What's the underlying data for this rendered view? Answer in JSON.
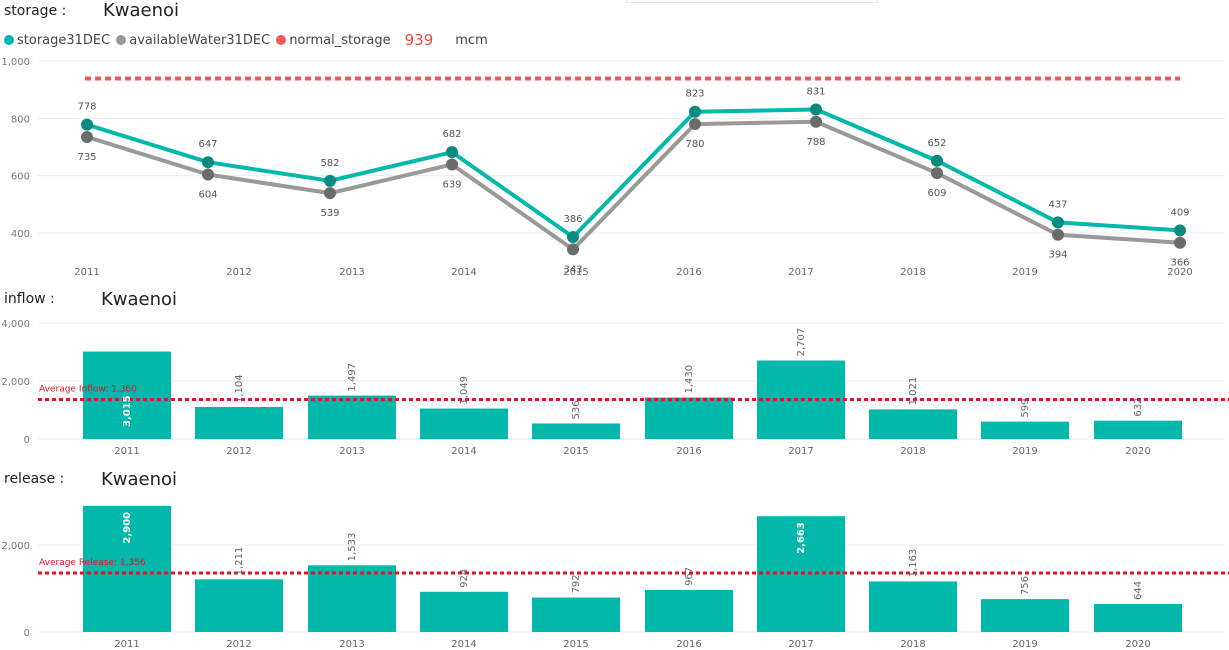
{
  "normal_storage_value": "939",
  "unit": "mcm",
  "colors": {
    "teal": "#01b8aa",
    "gray": "#999999",
    "dot_gray": "#6b6b6b",
    "red": "#e74c3c",
    "avg_red": "#e81123"
  },
  "storage": {
    "label": "storage :",
    "title": "Kwaenoi",
    "legend": [
      "storage31DEC",
      "availableWater31DEC",
      "normal_storage"
    ]
  },
  "inflow": {
    "label": "inflow :",
    "title": "Kwaenoi"
  },
  "release": {
    "label": "release :",
    "title": "Kwaenoi"
  },
  "chart_data": [
    {
      "type": "line",
      "title": "",
      "categories": [
        "2011",
        "2012",
        "2013",
        "2014",
        "2015",
        "2016",
        "2017",
        "2018",
        "2019",
        "2020"
      ],
      "series": [
        {
          "name": "storage31DEC",
          "values": [
            778,
            647,
            582,
            682,
            386,
            823,
            831,
            652,
            437,
            409
          ]
        },
        {
          "name": "availableWater31DEC",
          "values": [
            735,
            604,
            539,
            639,
            343,
            780,
            788,
            609,
            394,
            366
          ]
        },
        {
          "name": "normal_storage",
          "values": [
            939,
            939,
            939,
            939,
            939,
            939,
            939,
            939,
            939,
            939
          ]
        }
      ],
      "data_labels_storage": [
        "778",
        "647",
        "582",
        "682",
        "386",
        "823",
        "831",
        "652",
        "437",
        "409"
      ],
      "data_labels_available": [
        "735",
        "604",
        "539",
        "639",
        "343",
        "780",
        "788",
        "609",
        "394",
        "366"
      ],
      "yticks": [
        "400",
        "600",
        "800",
        "1,000"
      ],
      "ylim": [
        350,
        1000
      ],
      "grid": true
    },
    {
      "type": "bar",
      "title": "",
      "categories": [
        "2011",
        "2012",
        "2013",
        "2014",
        "2015",
        "2016",
        "2017",
        "2018",
        "2019",
        "2020"
      ],
      "values": [
        3015,
        1104,
        1497,
        1049,
        536,
        1430,
        2707,
        1021,
        599,
        632
      ],
      "data_labels": [
        "3,015",
        "1,104",
        "1,497",
        "1,049",
        "536",
        "1,430",
        "2,707",
        "1,021",
        "599",
        "632"
      ],
      "average": 1360,
      "average_label": "Average Inflow: 1,360",
      "yticks": [
        "0",
        "2,000",
        "4,000"
      ],
      "ylim": [
        0,
        4000
      ],
      "grid": true
    },
    {
      "type": "bar",
      "title": "",
      "categories": [
        "2011",
        "2012",
        "2013",
        "2014",
        "2015",
        "2016",
        "2017",
        "2018",
        "2019",
        "2020"
      ],
      "values": [
        2900,
        1211,
        1533,
        924,
        792,
        967,
        2663,
        1163,
        756,
        644
      ],
      "data_labels": [
        "2,900",
        "1,211",
        "1,533",
        "924",
        "792",
        "967",
        "2,663",
        "1,163",
        "756",
        "644"
      ],
      "average": 1356,
      "average_label": "Average Release: 1,356",
      "yticks": [
        "0",
        "2,000"
      ],
      "ylim": [
        0,
        2900
      ],
      "grid": true
    }
  ]
}
